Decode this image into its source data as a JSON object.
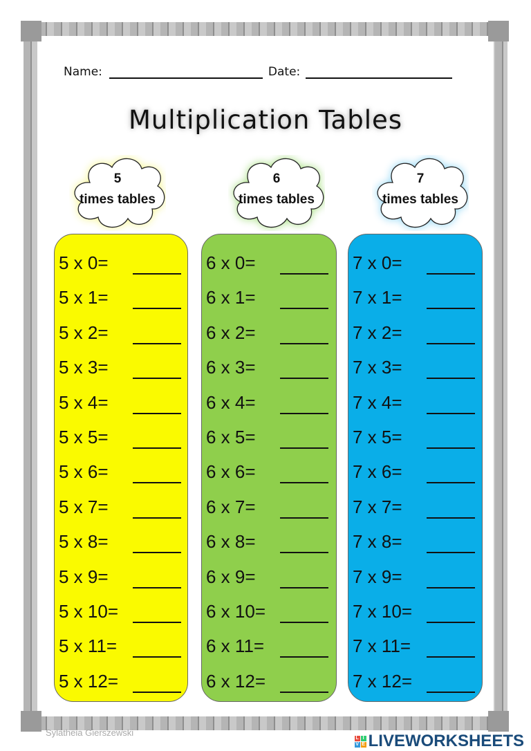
{
  "header": {
    "name_label": "Name:",
    "date_label": "Date:"
  },
  "title": "Multiplication Tables",
  "columns": [
    {
      "number": "5",
      "subtitle": "times tables",
      "color": "#fafa00",
      "glow": "#f5f590",
      "rows": [
        "5 x 0=",
        "5 x 1=",
        "5 x 2=",
        "5 x 3=",
        "5 x 4=",
        "5 x 5=",
        "5 x 6=",
        "5 x 7=",
        "5 x 8=",
        "5 x 9=",
        "5 x 10=",
        "5 x 11=",
        "5 x 12="
      ]
    },
    {
      "number": "6",
      "subtitle": "times tables",
      "color": "#8fcf4c",
      "glow": "#a6de80",
      "rows": [
        "6 x 0=",
        "6 x 1=",
        "6 x 2=",
        "6 x 3=",
        "6 x 4=",
        "6 x 5=",
        "6 x 6=",
        "6 x 7=",
        "6 x 8=",
        "6 x 9=",
        "6 x 10=",
        "6 x 11=",
        "6 x 12="
      ]
    },
    {
      "number": "7",
      "subtitle": "times tables",
      "color": "#0aaee8",
      "glow": "#8fd6f5",
      "rows": [
        "7 x 0=",
        "7 x 1=",
        "7 x 2=",
        "7 x 3=",
        "7 x 4=",
        "7 x 5=",
        "7 x 6=",
        "7 x 7=",
        "7 x 8=",
        "7 x 9=",
        "7 x 10=",
        "7 x 11=",
        "7 x 12="
      ]
    }
  ],
  "footer": {
    "author": "Sylatheia Gierszewski",
    "brand": "LIVEWORKSHEETS",
    "brand_logo_letters": [
      "L",
      "I",
      "V",
      "E"
    ]
  }
}
